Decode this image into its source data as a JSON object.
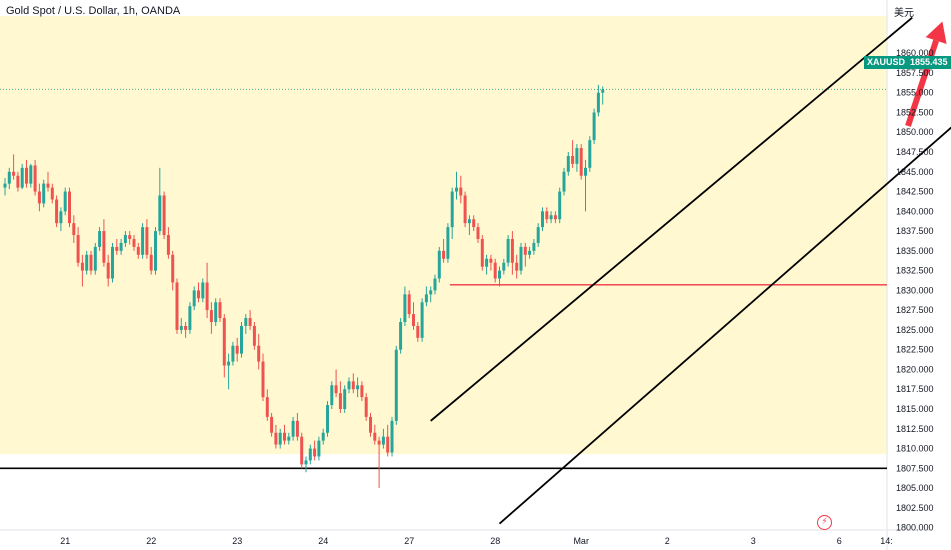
{
  "header": {
    "title": "Gold Spot / U.S. Dollar, 1h, OANDA",
    "currency_label": "美元"
  },
  "price_badge": {
    "symbol": "XAUUSD",
    "price": "1855.435"
  },
  "colors": {
    "up": "#26a69a",
    "down": "#ef5350",
    "highlight": "#fff8d1",
    "resistance": "#f23645",
    "badge": "#089981",
    "arrow": "#f23645"
  },
  "chart_data": {
    "type": "candlestick",
    "symbol": "XAUUSD",
    "interval": "1h",
    "source": "OANDA",
    "last_price": 1855.435,
    "y_axis": {
      "range": [
        1799.7,
        1864.7
      ],
      "ticks": [
        "1860.000",
        "1857.500",
        "1855.000",
        "1852.500",
        "1850.000",
        "1847.500",
        "1845.000",
        "1842.500",
        "1840.000",
        "1837.500",
        "1835.000",
        "1832.500",
        "1830.000",
        "1827.500",
        "1825.000",
        "1822.500",
        "1820.000",
        "1817.500",
        "1815.000",
        "1812.500",
        "1810.000",
        "1807.500",
        "1805.000",
        "1802.500",
        "1800.000"
      ]
    },
    "x_axis": {
      "labels": [
        {
          "label": "21",
          "bar": 14
        },
        {
          "label": "22",
          "bar": 34
        },
        {
          "label": "23",
          "bar": 54
        },
        {
          "label": "24",
          "bar": 74
        },
        {
          "label": "27",
          "bar": 94
        },
        {
          "label": "28",
          "bar": 114
        },
        {
          "label": "Mar",
          "bar": 134
        },
        {
          "label": "2",
          "bar": 154
        },
        {
          "label": "3",
          "bar": 174
        },
        {
          "label": "6",
          "bar": 194
        },
        {
          "label": "14:",
          "bar": 205
        }
      ]
    },
    "highlight_zone": [
      1809.3,
      1864.7
    ],
    "candles": [
      [
        1843.0,
        1844.2,
        1842.0,
        1843.5
      ],
      [
        1843.5,
        1845.5,
        1842.8,
        1845.0
      ],
      [
        1845.0,
        1847.2,
        1844.0,
        1844.5
      ],
      [
        1844.5,
        1845.0,
        1842.5,
        1843.0
      ],
      [
        1843.0,
        1846.0,
        1842.8,
        1845.5
      ],
      [
        1845.5,
        1846.5,
        1843.0,
        1843.5
      ],
      [
        1843.5,
        1846.0,
        1843.0,
        1845.8
      ],
      [
        1845.8,
        1846.5,
        1842.0,
        1842.5
      ],
      [
        1842.5,
        1843.5,
        1840.0,
        1841.0
      ],
      [
        1841.0,
        1844.0,
        1840.5,
        1843.5
      ],
      [
        1843.5,
        1845.0,
        1842.5,
        1843.0
      ],
      [
        1843.0,
        1843.5,
        1841.0,
        1841.5
      ],
      [
        1841.5,
        1842.0,
        1838.0,
        1838.5
      ],
      [
        1838.5,
        1840.5,
        1837.5,
        1840.0
      ],
      [
        1840.0,
        1843.0,
        1839.5,
        1842.5
      ],
      [
        1842.5,
        1843.0,
        1838.0,
        1838.5
      ],
      [
        1838.5,
        1839.5,
        1836.0,
        1837.0
      ],
      [
        1837.0,
        1838.0,
        1833.0,
        1833.5
      ],
      [
        1833.5,
        1834.5,
        1830.5,
        1832.5
      ],
      [
        1832.5,
        1835.0,
        1832.0,
        1834.5
      ],
      [
        1834.5,
        1835.0,
        1832.0,
        1832.5
      ],
      [
        1832.5,
        1836.0,
        1832.0,
        1835.5
      ],
      [
        1835.5,
        1838.0,
        1835.0,
        1837.5
      ],
      [
        1837.5,
        1839.0,
        1833.0,
        1833.5
      ],
      [
        1833.5,
        1834.5,
        1830.5,
        1831.5
      ],
      [
        1831.5,
        1836.0,
        1831.0,
        1835.5
      ],
      [
        1835.5,
        1836.5,
        1834.5,
        1835.0
      ],
      [
        1835.0,
        1836.5,
        1834.5,
        1836.0
      ],
      [
        1836.0,
        1837.5,
        1835.5,
        1837.0
      ],
      [
        1837.0,
        1837.5,
        1835.8,
        1836.5
      ],
      [
        1836.5,
        1837.0,
        1835.0,
        1835.5
      ],
      [
        1835.5,
        1836.0,
        1834.0,
        1834.5
      ],
      [
        1834.5,
        1838.5,
        1834.0,
        1838.0
      ],
      [
        1838.0,
        1839.0,
        1834.0,
        1834.5
      ],
      [
        1834.5,
        1835.5,
        1832.0,
        1832.5
      ],
      [
        1832.5,
        1838.0,
        1832.0,
        1837.5
      ],
      [
        1837.5,
        1845.5,
        1837.0,
        1842.0
      ],
      [
        1842.0,
        1842.5,
        1836.5,
        1837.0
      ],
      [
        1837.0,
        1838.0,
        1834.0,
        1834.5
      ],
      [
        1834.5,
        1835.0,
        1830.0,
        1831.0
      ],
      [
        1831.0,
        1831.5,
        1824.5,
        1825.0
      ],
      [
        1825.0,
        1826.5,
        1824.5,
        1825.5
      ],
      [
        1825.5,
        1826.0,
        1824.0,
        1825.0
      ],
      [
        1825.0,
        1828.5,
        1824.5,
        1828.0
      ],
      [
        1828.0,
        1830.5,
        1827.5,
        1830.0
      ],
      [
        1830.0,
        1831.0,
        1828.5,
        1829.0
      ],
      [
        1829.0,
        1831.5,
        1828.5,
        1831.0
      ],
      [
        1831.0,
        1833.5,
        1826.5,
        1827.5
      ],
      [
        1827.5,
        1828.5,
        1824.5,
        1826.0
      ],
      [
        1826.0,
        1829.0,
        1825.5,
        1828.5
      ],
      [
        1828.5,
        1829.0,
        1826.0,
        1826.5
      ],
      [
        1826.5,
        1827.0,
        1819.0,
        1820.5
      ],
      [
        1820.5,
        1822.0,
        1817.5,
        1821.0
      ],
      [
        1821.0,
        1823.5,
        1820.5,
        1823.0
      ],
      [
        1823.0,
        1824.0,
        1821.0,
        1822.0
      ],
      [
        1822.0,
        1826.0,
        1821.5,
        1825.5
      ],
      [
        1825.5,
        1827.0,
        1824.5,
        1826.5
      ],
      [
        1826.5,
        1827.5,
        1825.0,
        1825.5
      ],
      [
        1825.5,
        1826.0,
        1822.5,
        1823.0
      ],
      [
        1823.0,
        1824.5,
        1820.0,
        1821.0
      ],
      [
        1821.0,
        1822.0,
        1816.0,
        1816.5
      ],
      [
        1816.5,
        1817.5,
        1813.5,
        1814.0
      ],
      [
        1814.0,
        1814.5,
        1811.5,
        1812.0
      ],
      [
        1812.0,
        1813.0,
        1810.0,
        1810.5
      ],
      [
        1810.5,
        1812.5,
        1810.0,
        1812.0
      ],
      [
        1812.0,
        1813.0,
        1810.5,
        1811.0
      ],
      [
        1811.0,
        1812.0,
        1810.5,
        1811.5
      ],
      [
        1811.5,
        1814.0,
        1811.0,
        1813.5
      ],
      [
        1813.5,
        1814.5,
        1811.0,
        1811.5
      ],
      [
        1811.5,
        1812.0,
        1807.5,
        1808.0
      ],
      [
        1808.0,
        1809.0,
        1807.0,
        1808.5
      ],
      [
        1808.5,
        1810.5,
        1808.0,
        1810.0
      ],
      [
        1810.0,
        1811.0,
        1808.5,
        1809.0
      ],
      [
        1809.0,
        1811.5,
        1808.5,
        1811.0
      ],
      [
        1811.0,
        1812.5,
        1810.5,
        1812.0
      ],
      [
        1812.0,
        1816.0,
        1811.5,
        1815.5
      ],
      [
        1815.5,
        1818.5,
        1815.0,
        1818.0
      ],
      [
        1818.0,
        1820.0,
        1816.5,
        1817.0
      ],
      [
        1817.0,
        1818.5,
        1814.5,
        1815.0
      ],
      [
        1815.0,
        1818.0,
        1814.5,
        1817.5
      ],
      [
        1817.5,
        1819.0,
        1817.0,
        1818.5
      ],
      [
        1818.5,
        1819.5,
        1817.0,
        1817.5
      ],
      [
        1817.5,
        1819.0,
        1816.5,
        1818.0
      ],
      [
        1818.0,
        1818.5,
        1816.0,
        1816.5
      ],
      [
        1816.5,
        1817.0,
        1813.5,
        1814.0
      ],
      [
        1814.0,
        1814.5,
        1811.5,
        1812.0
      ],
      [
        1812.0,
        1813.0,
        1810.5,
        1811.0
      ],
      [
        1811.0,
        1811.5,
        1805.0,
        1810.5
      ],
      [
        1810.5,
        1812.5,
        1810.0,
        1811.5
      ],
      [
        1811.5,
        1813.0,
        1809.0,
        1809.5
      ],
      [
        1809.5,
        1814.0,
        1809.0,
        1813.5
      ],
      [
        1813.5,
        1823.0,
        1813.0,
        1822.5
      ],
      [
        1822.5,
        1826.5,
        1822.0,
        1826.0
      ],
      [
        1826.0,
        1830.5,
        1825.5,
        1829.5
      ],
      [
        1829.5,
        1830.0,
        1826.5,
        1827.0
      ],
      [
        1827.0,
        1828.5,
        1825.0,
        1825.5
      ],
      [
        1825.5,
        1826.0,
        1823.5,
        1824.0
      ],
      [
        1824.0,
        1829.0,
        1823.5,
        1828.5
      ],
      [
        1828.5,
        1830.5,
        1828.0,
        1829.5
      ],
      [
        1829.5,
        1830.5,
        1828.5,
        1830.0
      ],
      [
        1830.0,
        1832.0,
        1829.5,
        1831.5
      ],
      [
        1831.5,
        1835.5,
        1831.0,
        1835.0
      ],
      [
        1835.0,
        1836.5,
        1833.5,
        1834.0
      ],
      [
        1834.0,
        1838.5,
        1833.5,
        1838.0
      ],
      [
        1838.0,
        1843.0,
        1836.5,
        1842.5
      ],
      [
        1842.5,
        1845.0,
        1841.5,
        1843.0
      ],
      [
        1843.0,
        1844.5,
        1841.0,
        1842.0
      ],
      [
        1842.0,
        1842.5,
        1838.0,
        1838.5
      ],
      [
        1838.5,
        1839.5,
        1837.0,
        1839.0
      ],
      [
        1839.0,
        1839.5,
        1837.5,
        1838.0
      ],
      [
        1838.0,
        1838.5,
        1836.0,
        1836.5
      ],
      [
        1836.5,
        1837.0,
        1832.5,
        1833.0
      ],
      [
        1833.0,
        1834.5,
        1832.0,
        1834.0
      ],
      [
        1834.0,
        1834.5,
        1832.5,
        1833.5
      ],
      [
        1833.5,
        1834.0,
        1831.0,
        1831.5
      ],
      [
        1831.5,
        1833.0,
        1830.5,
        1832.5
      ],
      [
        1832.5,
        1834.0,
        1832.0,
        1833.5
      ],
      [
        1833.5,
        1837.0,
        1833.0,
        1836.5
      ],
      [
        1836.5,
        1837.5,
        1832.0,
        1833.5
      ],
      [
        1833.5,
        1834.5,
        1831.5,
        1832.5
      ],
      [
        1832.5,
        1836.0,
        1832.0,
        1835.5
      ],
      [
        1835.5,
        1836.0,
        1833.0,
        1834.5
      ],
      [
        1834.5,
        1835.5,
        1834.0,
        1835.0
      ],
      [
        1835.0,
        1836.5,
        1834.5,
        1836.0
      ],
      [
        1836.0,
        1838.5,
        1835.5,
        1838.0
      ],
      [
        1838.0,
        1840.5,
        1837.5,
        1840.0
      ],
      [
        1840.0,
        1840.5,
        1838.5,
        1839.0
      ],
      [
        1839.0,
        1840.0,
        1838.5,
        1839.5
      ],
      [
        1839.5,
        1840.0,
        1838.5,
        1839.0
      ],
      [
        1839.0,
        1843.0,
        1838.5,
        1842.5
      ],
      [
        1842.5,
        1845.5,
        1842.0,
        1845.0
      ],
      [
        1845.0,
        1847.5,
        1844.5,
        1847.0
      ],
      [
        1847.0,
        1849.0,
        1845.5,
        1846.0
      ],
      [
        1846.0,
        1848.5,
        1845.0,
        1848.0
      ],
      [
        1848.0,
        1848.5,
        1844.0,
        1844.5
      ],
      [
        1844.5,
        1846.5,
        1840.0,
        1845.5
      ],
      [
        1845.5,
        1849.5,
        1845.0,
        1849.0
      ],
      [
        1849.0,
        1853.0,
        1848.5,
        1852.5
      ],
      [
        1852.5,
        1856.0,
        1852.0,
        1855.0
      ],
      [
        1855.0,
        1855.8,
        1853.5,
        1855.4
      ]
    ],
    "resistance_level": 1830.7,
    "support_level": 1807.5,
    "channel": {
      "upper": [
        [
          99.0,
          1813.5
        ],
        [
          211.0,
          1864.5
        ]
      ],
      "lower": [
        [
          115.0,
          1800.5
        ],
        [
          223.0,
          1852.0
        ]
      ]
    },
    "projection_arrow": {
      "from": [
        210.0,
        1850.8
      ],
      "to": [
        218.0,
        1864.0
      ]
    }
  }
}
